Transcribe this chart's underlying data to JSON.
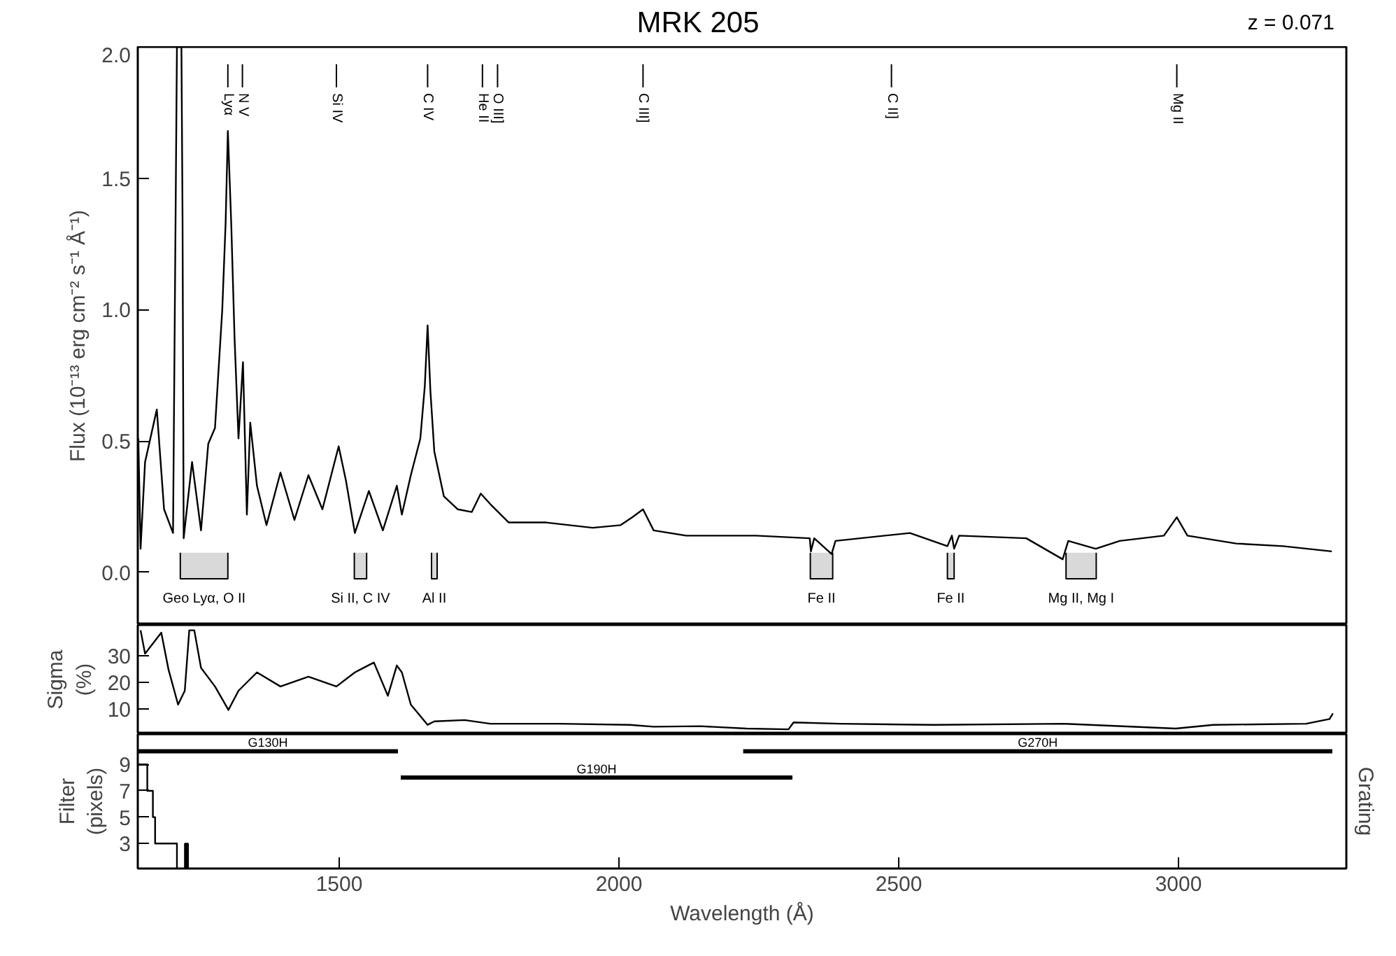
{
  "chart_data": [
    {
      "type": "line",
      "title": "MRK 205",
      "ylabel": "Flux (10⁻¹³ erg cm⁻² s⁻¹ Å⁻¹)",
      "xlim": [
        1140,
        3300
      ],
      "xticks": [
        1500,
        2000,
        2500,
        3000
      ],
      "ylim": [
        -0.2,
        2.0
      ],
      "yticks": [
        {
          "value": 0,
          "label": "0.0"
        },
        0.5,
        {
          "value": 1,
          "label": "1.0"
        },
        1.5,
        {
          "value": 2,
          "label": "2.0"
        }
      ],
      "tick_labels": "y",
      "series": [
        {
          "color": "#000000",
          "x": [
            1141,
            1145,
            1153,
            1174,
            1187,
            1203,
            1210,
            1218,
            1220,
            1222,
            1237,
            1253,
            1266,
            1278,
            1291,
            1297,
            1301,
            1307,
            1313,
            1320,
            1328,
            1335,
            1341,
            1353,
            1370,
            1395,
            1420,
            1445,
            1470,
            1499,
            1512,
            1528,
            1553,
            1578,
            1603,
            1612,
            1628,
            1645,
            1653,
            1658,
            1663,
            1670,
            1687,
            1712,
            1737,
            1753,
            1770,
            1803,
            1870,
            1953,
            2003,
            2024,
            2043,
            2062,
            2120,
            2245,
            2341,
            2343,
            2349,
            2380,
            2387,
            2520,
            2587,
            2595,
            2599,
            2608,
            2728,
            2793,
            2803,
            2852,
            2895,
            2974,
            2997,
            3016,
            3103,
            3187,
            3274
          ],
          "values": [
            0.51,
            0.09,
            0.42,
            0.62,
            0.24,
            0.15,
            2.0,
            2.0,
            1.35,
            0.13,
            0.42,
            0.16,
            0.49,
            0.55,
            1.0,
            1.33,
            1.68,
            1.33,
            0.89,
            0.51,
            0.8,
            0.22,
            0.57,
            0.33,
            0.18,
            0.38,
            0.2,
            0.37,
            0.24,
            0.48,
            0.35,
            0.15,
            0.31,
            0.16,
            0.33,
            0.22,
            0.37,
            0.51,
            0.71,
            0.94,
            0.69,
            0.46,
            0.29,
            0.24,
            0.23,
            0.3,
            0.26,
            0.19,
            0.19,
            0.17,
            0.18,
            0.21,
            0.24,
            0.16,
            0.14,
            0.14,
            0.13,
            0.08,
            0.13,
            0.07,
            0.12,
            0.15,
            0.1,
            0.14,
            0.09,
            0.14,
            0.13,
            0.05,
            0.12,
            0.09,
            0.12,
            0.14,
            0.21,
            0.14,
            0.11,
            0.1,
            0.08
          ]
        }
      ],
      "ref_lines": [
        {
          "axis": "x",
          "value": 1301,
          "label": "Lyα"
        },
        {
          "axis": "x",
          "value": 1327,
          "label": "N V"
        },
        {
          "axis": "x",
          "value": 1495,
          "label": "Si IV"
        },
        {
          "axis": "x",
          "value": 1658,
          "label": "C IV"
        },
        {
          "axis": "x",
          "value": 1756,
          "label": "He II"
        },
        {
          "axis": "x",
          "value": 1783,
          "label": "O III]"
        },
        {
          "axis": "x",
          "value": 2043,
          "label": "C III]"
        },
        {
          "axis": "x",
          "value": 2487,
          "label": "C II]"
        },
        {
          "axis": "x",
          "value": 2997,
          "label": "Mg II"
        }
      ],
      "bands": [
        {
          "axis": "x",
          "from": 1216,
          "to": 1301,
          "label": "Geo Lyα, O II"
        },
        {
          "axis": "x",
          "from": 1527,
          "to": 1549,
          "label": "Si II, C IV"
        },
        {
          "axis": "x",
          "from": 1665,
          "to": 1675,
          "label": "Al II"
        },
        {
          "axis": "x",
          "from": 2342,
          "to": 2382,
          "label": "Fe II"
        },
        {
          "axis": "x",
          "from": 2587,
          "to": 2599,
          "label": "Fe II"
        },
        {
          "axis": "x",
          "from": 2799,
          "to": 2853,
          "label": "Mg II, Mg I"
        }
      ],
      "annotations": [
        "z = 0.071"
      ]
    },
    {
      "type": "line",
      "ylabel": "Sigma\n(%)",
      "xlim": [
        1140,
        3300
      ],
      "xticks": [
        1500,
        2000,
        2500,
        3000
      ],
      "ylim": [
        0.5,
        41.5
      ],
      "yticks": [
        10,
        20,
        30
      ],
      "tick_labels": "y",
      "series": [
        {
          "color": "#000000",
          "x": [
            1145,
            1153,
            1182,
            1195,
            1212,
            1224,
            1232,
            1241,
            1253,
            1278,
            1302,
            1320,
            1353,
            1395,
            1445,
            1495,
            1528,
            1562,
            1587,
            1603,
            1612,
            1628,
            1658,
            1670,
            1724,
            1770,
            1895,
            2020,
            2062,
            2145,
            2228,
            2303,
            2312,
            2395,
            2562,
            2795,
            2995,
            3062,
            3228,
            3270,
            3276
          ],
          "values": [
            39.5,
            30.7,
            38.6,
            24.7,
            11.6,
            16.8,
            39.5,
            39.5,
            25.4,
            18.4,
            9.6,
            16.8,
            23.7,
            18.4,
            22.1,
            18.4,
            23.7,
            27.4,
            14.9,
            26.3,
            23.7,
            11.6,
            4.0,
            5.3,
            5.8,
            4.4,
            4.4,
            4.0,
            3.3,
            3.5,
            2.6,
            2.3,
            4.9,
            4.4,
            4.0,
            4.4,
            2.6,
            4.0,
            4.4,
            6.2,
            8.3
          ]
        }
      ]
    },
    {
      "type": "line",
      "xlabel": "Wavelength (Å)",
      "ylabel": "Filter\n(pixels)",
      "y2label": "Grating",
      "xlim": [
        1140,
        3300
      ],
      "xticks": [
        1500,
        2000,
        2500,
        3000
      ],
      "ylim": [
        1.1,
        11.3
      ],
      "yticks": [
        3,
        5,
        7,
        9
      ],
      "series": [
        {
          "color": "#000000",
          "x": [
            1140,
            1157,
            1157,
            1167,
            1167,
            1171,
            1171,
            1210,
            1210
          ],
          "values": [
            9,
            9,
            7,
            7,
            5,
            5,
            3,
            3,
            1.1
          ]
        },
        {
          "type": "bar",
          "color": "#000000",
          "x": [
            1227
          ],
          "base": [
            1.1
          ],
          "values": [
            1.9
          ]
        },
        {
          "name": "G130H",
          "color": "#000000",
          "x": [
            1140,
            1605
          ],
          "values": [
            10,
            10
          ]
        },
        {
          "name": "G190H",
          "color": "#000000",
          "x": [
            1610,
            2310
          ],
          "values": [
            8,
            8
          ]
        },
        {
          "name": "G270H",
          "color": "#000000",
          "x": [
            2222,
            3275
          ],
          "values": [
            10,
            10
          ]
        }
      ]
    }
  ]
}
